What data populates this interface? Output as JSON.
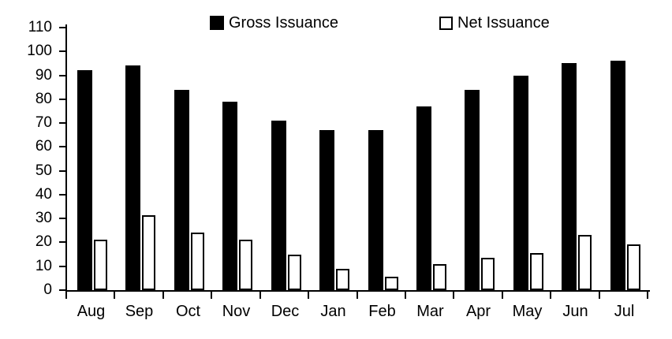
{
  "chart_data": {
    "type": "bar",
    "title": "",
    "xlabel": "",
    "ylabel": "",
    "categories": [
      "Aug",
      "Sep",
      "Oct",
      "Nov",
      "Dec",
      "Jan",
      "Feb",
      "Mar",
      "Apr",
      "May",
      "Jun",
      "Jul"
    ],
    "series": [
      {
        "name": "Gross Issuance",
        "style": "filled-black",
        "values": [
          92,
          94,
          84,
          79,
          71,
          67,
          67,
          77,
          84,
          90,
          95,
          96
        ]
      },
      {
        "name": "Net Issuance",
        "style": "open-white",
        "values": [
          21,
          31.5,
          24,
          21,
          15,
          9,
          5.5,
          11,
          13.5,
          15.5,
          23,
          19
        ]
      }
    ],
    "ylim": [
      0,
      110
    ],
    "yticks": [
      0,
      10,
      20,
      30,
      40,
      50,
      60,
      70,
      80,
      90,
      100,
      110
    ],
    "grid": false,
    "legend_position": "top"
  },
  "colors": {
    "bar_gross_fill": "#000000",
    "bar_net_fill": "#ffffff",
    "bar_net_border": "#000000",
    "axis": "#000000",
    "background": "#ffffff",
    "text": "#000000"
  }
}
